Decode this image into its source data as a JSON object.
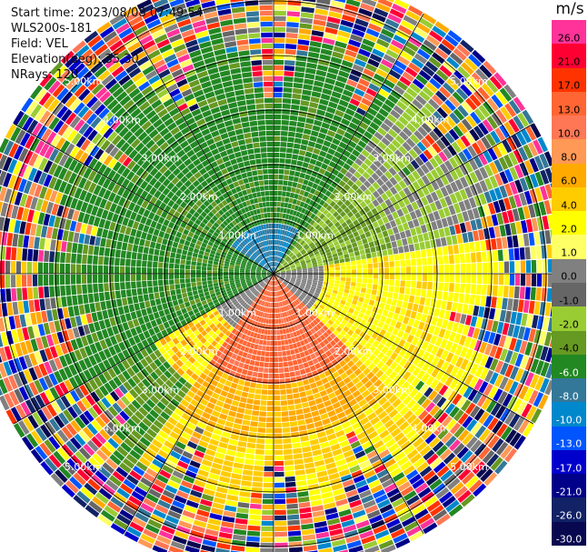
{
  "header": {
    "start_time": "Start time: 2023/08/08 07:49:54",
    "instrument": "WLS200s-181",
    "field": "Field: VEL",
    "elevation": "Elevation(deg): 35.30",
    "nrays": "NRays: 120"
  },
  "colorbar": {
    "unit": "m/s",
    "ticks": [
      "26.0",
      "21.0",
      "17.0",
      "13.0",
      "10.0",
      "8.0",
      "6.0",
      "4.0",
      "2.0",
      "1.0",
      "0.0",
      "-1.0",
      "-2.0",
      "-4.0",
      "-6.0",
      "-8.0",
      "-10.0",
      "-13.0",
      "-17.0",
      "-21.0",
      "-26.0",
      "-30.0"
    ],
    "colors": [
      "#ff3399",
      "#ff0033",
      "#ff3300",
      "#ff6633",
      "#ff7755",
      "#ff9955",
      "#ffaa00",
      "#ffcc00",
      "#ffff00",
      "#ffff66",
      "#808080",
      "#666666",
      "#99cc33",
      "#669922",
      "#228822",
      "#337799",
      "#0088cc",
      "#0055ff",
      "#0000cc",
      "#000088",
      "#112266",
      "#080850"
    ]
  },
  "range_labels": [
    "1.00km",
    "2.00km",
    "3.00km",
    "4.00km",
    "5.00km"
  ],
  "map": {
    "center_x": 301,
    "center_y": 301,
    "ring_km": [
      1,
      2,
      3,
      4,
      5
    ],
    "max_km": 5.5
  }
}
